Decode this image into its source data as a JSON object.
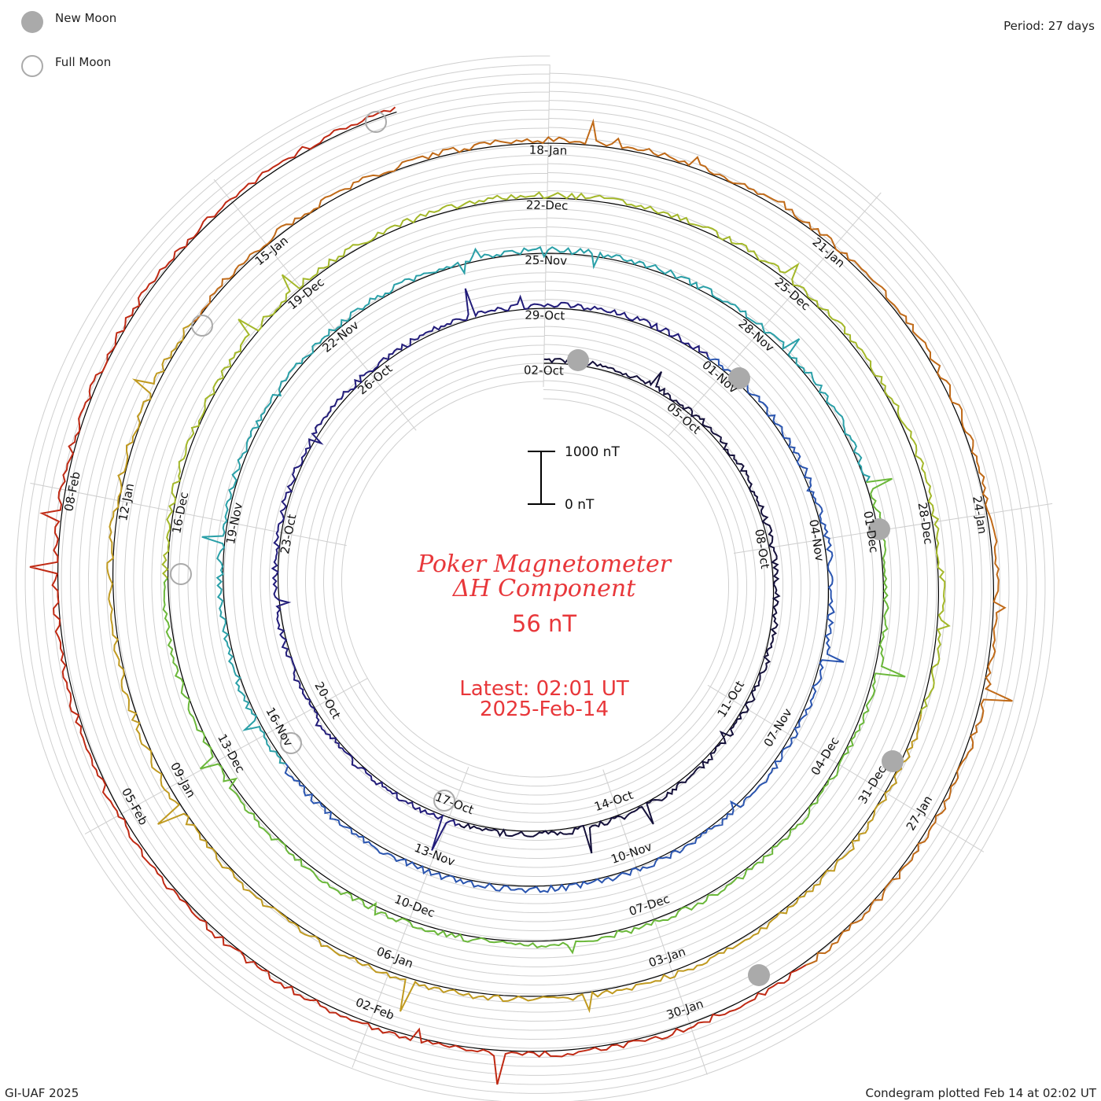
{
  "chart_data": {
    "type": "line",
    "title": "Poker Magnetometer",
    "subtitle": "ΔH Component",
    "current_value": "56 nT",
    "latest_time": "Latest: 02:01 UT",
    "latest_date": "2025-Feb-14",
    "period": "Period: 27 days",
    "credit": "GI-UAF 2025",
    "plot_time": "Condegram plotted Feb 14 at 02:02 UT",
    "scale_top": "1000 nT",
    "scale_bottom": "0 nT",
    "legend": {
      "new_moon": "New Moon",
      "full_moon": "Full Moon"
    },
    "rotations": [
      {
        "color": "#1a1040",
        "labels": [
          "02-Oct",
          "05-Oct",
          "08-Oct",
          "11-Oct",
          "14-Oct",
          "17-Oct",
          "20-Oct",
          "23-Oct",
          "26-Oct"
        ]
      },
      {
        "color": "#2f2f9a",
        "labels": [
          "29-Oct",
          "01-Nov",
          "04-Nov",
          "07-Nov",
          "10-Nov",
          "13-Nov",
          "16-Nov",
          "19-Nov",
          "22-Nov"
        ]
      },
      {
        "color": "#2b8fb0",
        "labels": [
          "25-Nov",
          "28-Nov",
          "01-Dec",
          "04-Dec",
          "07-Dec",
          "10-Dec",
          "13-Dec",
          "16-Dec",
          "19-Dec"
        ]
      },
      {
        "color": "#7fbf2a",
        "labels": [
          "22-Dec",
          "25-Dec",
          "28-Dec",
          "31-Dec",
          "03-Jan",
          "06-Jan",
          "09-Jan",
          "12-Jan",
          "15-Jan"
        ]
      },
      {
        "color": "#c09a20",
        "labels": [
          "18-Jan",
          "21-Jan",
          "24-Jan",
          "27-Jan",
          "30-Jan",
          "02-Feb",
          "05-Feb",
          "08-Feb"
        ]
      }
    ],
    "series_colors": [
      "#14103a",
      "#221c7a",
      "#2a55b0",
      "#2aa0a8",
      "#6bb83a",
      "#a4b82a",
      "#c09a20",
      "#c06a18",
      "#c02a14"
    ],
    "new_moons": [
      "02-Oct",
      "01-Nov",
      "01-Dec",
      "30-Dec",
      "29-Jan"
    ],
    "full_moons": [
      "17-Oct",
      "15-Nov",
      "15-Dec",
      "13-Jan",
      "12-Feb"
    ],
    "period_days": 27,
    "grid": true
  }
}
